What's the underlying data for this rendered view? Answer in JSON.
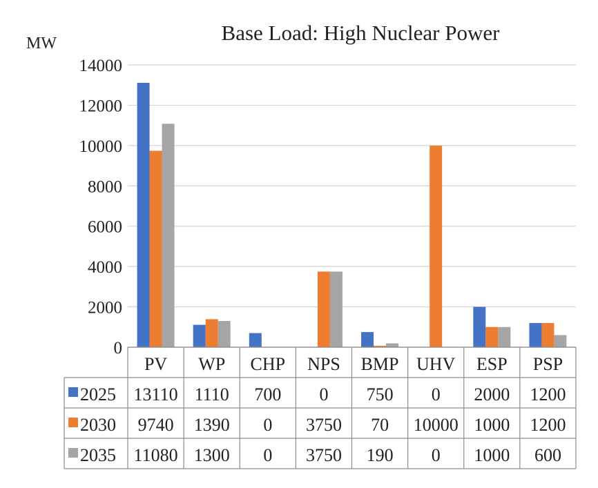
{
  "chart_data": {
    "type": "bar",
    "title": "Base Load: High Nuclear Power",
    "ylabel": "MW",
    "xlabel": "",
    "ylim": [
      0,
      14000
    ],
    "yticks": [
      0,
      2000,
      4000,
      6000,
      8000,
      10000,
      12000,
      14000
    ],
    "grid": true,
    "legend": "data-table",
    "categories": [
      "PV",
      "WP",
      "CHP",
      "NPS",
      "BMP",
      "UHV",
      "ESP",
      "PSP"
    ],
    "series": [
      {
        "name": "2025",
        "color": "#4472C4",
        "values": [
          13110,
          1110,
          700,
          0,
          750,
          0,
          2000,
          1200
        ]
      },
      {
        "name": "2030",
        "color": "#ED7D31",
        "values": [
          9740,
          1390,
          0,
          3750,
          70,
          10000,
          1000,
          1200
        ]
      },
      {
        "name": "2035",
        "color": "#A5A5A5",
        "values": [
          11080,
          1300,
          0,
          3750,
          190,
          0,
          1000,
          600
        ]
      }
    ]
  }
}
